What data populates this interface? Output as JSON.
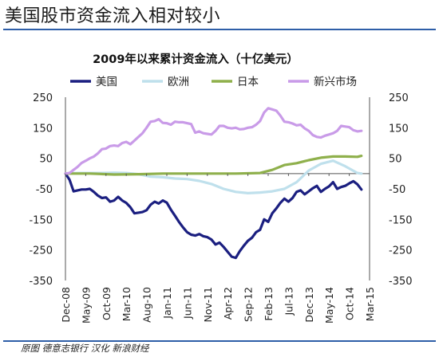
{
  "page_title": "美国股市资金流入相对较小",
  "source_note": "原图 德意志银行 汉化 新浪财经",
  "chart_data": {
    "type": "line",
    "title": "2009年以来累计资金流入（十亿美元）",
    "xlabel": "",
    "ylabel": "",
    "ylim": [
      -350,
      250
    ],
    "yticks": [
      250,
      150,
      50,
      -50,
      -150,
      -250,
      -350
    ],
    "grid": false,
    "legend_position": "top",
    "x_tick_labels": [
      "Dec-08",
      "May-09",
      "Oct-09",
      "Mar-10",
      "Aug-10",
      "Jan-11",
      "Jun-11",
      "Nov-11",
      "Apr-12",
      "Sep-12",
      "Feb-13",
      "Jul-13",
      "Dec-13",
      "May-14",
      "Oct-14",
      "Mar-15"
    ],
    "x_start": "Dec-08",
    "x_end": "Mar-15",
    "series": [
      {
        "name": "美国",
        "color": "#1b1f80",
        "x": [
          "Dec-08",
          "Jan-09",
          "Feb-09",
          "Mar-09",
          "Apr-09",
          "May-09",
          "Jun-09",
          "Jul-09",
          "Aug-09",
          "Sep-09",
          "Oct-09",
          "Nov-09",
          "Dec-09",
          "Jan-10",
          "Feb-10",
          "Mar-10",
          "Apr-10",
          "May-10",
          "Jun-10",
          "Jul-10",
          "Aug-10",
          "Sep-10",
          "Oct-10",
          "Nov-10",
          "Dec-10",
          "Jan-11",
          "Feb-11",
          "Mar-11",
          "Apr-11",
          "May-11",
          "Jun-11",
          "Jul-11",
          "Aug-11",
          "Sep-11",
          "Oct-11",
          "Nov-11",
          "Dec-11",
          "Jan-12",
          "Feb-12",
          "Mar-12",
          "Apr-12",
          "May-12",
          "Jun-12",
          "Jul-12",
          "Aug-12",
          "Sep-12",
          "Oct-12",
          "Nov-12",
          "Dec-12",
          "Jan-13",
          "Feb-13",
          "Mar-13",
          "Apr-13",
          "May-13",
          "Jun-13",
          "Jul-13",
          "Aug-13",
          "Sep-13",
          "Oct-13",
          "Nov-13",
          "Dec-13",
          "Jan-14",
          "Feb-14",
          "Mar-14",
          "Apr-14",
          "May-14",
          "Jun-14",
          "Jul-14",
          "Aug-14",
          "Sep-14",
          "Oct-14",
          "Nov-14",
          "Dec-14",
          "Jan-15"
        ],
        "values": [
          0,
          -20,
          -58,
          -55,
          -52,
          -52,
          -50,
          -60,
          -72,
          -80,
          -78,
          -92,
          -88,
          -76,
          -88,
          -96,
          -110,
          -130,
          -128,
          -126,
          -120,
          -102,
          -92,
          -98,
          -88,
          -95,
          -118,
          -138,
          -158,
          -176,
          -192,
          -200,
          -203,
          -198,
          -205,
          -208,
          -216,
          -232,
          -226,
          -240,
          -256,
          -272,
          -276,
          -254,
          -236,
          -220,
          -210,
          -192,
          -184,
          -150,
          -158,
          -130,
          -114,
          -96,
          -82,
          -92,
          -80,
          -60,
          -55,
          -68,
          -58,
          -48,
          -40,
          -60,
          -50,
          -42,
          -28,
          -50,
          -44,
          -40,
          -32,
          -25,
          -35,
          -52
        ]
      },
      {
        "name": "欧洲",
        "color": "#bfe0ec",
        "x": [
          "Dec-08",
          "Mar-09",
          "Jun-09",
          "Sep-09",
          "Dec-09",
          "Mar-10",
          "Jun-10",
          "Sep-10",
          "Dec-10",
          "Mar-11",
          "Jun-11",
          "Sep-11",
          "Dec-11",
          "Mar-12",
          "Jun-12",
          "Sep-12",
          "Dec-12",
          "Mar-13",
          "Jun-13",
          "Sep-13",
          "Dec-13",
          "Mar-14",
          "Jun-14",
          "Sep-14",
          "Dec-14",
          "Jan-15"
        ],
        "values": [
          0,
          2,
          2,
          2,
          3,
          2,
          -2,
          -10,
          -12,
          -16,
          -18,
          -24,
          -34,
          -50,
          -60,
          -64,
          -62,
          -58,
          -50,
          -28,
          10,
          32,
          42,
          24,
          2,
          0
        ]
      },
      {
        "name": "日本",
        "color": "#8fb04c",
        "x": [
          "Dec-08",
          "Jun-09",
          "Dec-09",
          "Jun-10",
          "Dec-10",
          "Jun-11",
          "Dec-11",
          "Jun-12",
          "Dec-12",
          "Mar-13",
          "Jun-13",
          "Sep-13",
          "Dec-13",
          "Mar-14",
          "Jun-14",
          "Sep-14",
          "Dec-14",
          "Jan-15"
        ],
        "values": [
          0,
          0,
          -3,
          -2,
          0,
          0,
          0,
          0,
          2,
          12,
          28,
          34,
          44,
          52,
          56,
          56,
          55,
          58
        ]
      },
      {
        "name": "新兴市场",
        "color": "#c99be8",
        "x": [
          "Dec-08",
          "Jan-09",
          "Feb-09",
          "Mar-09",
          "Apr-09",
          "May-09",
          "Jun-09",
          "Jul-09",
          "Aug-09",
          "Sep-09",
          "Oct-09",
          "Nov-09",
          "Dec-09",
          "Jan-10",
          "Feb-10",
          "Mar-10",
          "Apr-10",
          "May-10",
          "Jun-10",
          "Jul-10",
          "Aug-10",
          "Sep-10",
          "Oct-10",
          "Nov-10",
          "Dec-10",
          "Jan-11",
          "Feb-11",
          "Mar-11",
          "Apr-11",
          "May-11",
          "Jun-11",
          "Jul-11",
          "Aug-11",
          "Sep-11",
          "Oct-11",
          "Nov-11",
          "Dec-11",
          "Jan-12",
          "Feb-12",
          "Mar-12",
          "Apr-12",
          "May-12",
          "Jun-12",
          "Jul-12",
          "Aug-12",
          "Sep-12",
          "Oct-12",
          "Nov-12",
          "Dec-12",
          "Jan-13",
          "Feb-13",
          "Mar-13",
          "Apr-13",
          "May-13",
          "Jun-13",
          "Jul-13",
          "Aug-13",
          "Sep-13",
          "Oct-13",
          "Nov-13",
          "Dec-13",
          "Jan-14",
          "Feb-14",
          "Mar-14",
          "Apr-14",
          "May-14",
          "Jun-14",
          "Jul-14",
          "Aug-14",
          "Sep-14",
          "Oct-14",
          "Nov-14",
          "Dec-14",
          "Jan-15"
        ],
        "values": [
          0,
          2,
          12,
          22,
          35,
          42,
          50,
          56,
          66,
          80,
          82,
          90,
          92,
          90,
          100,
          104,
          96,
          108,
          120,
          132,
          150,
          170,
          172,
          178,
          166,
          165,
          160,
          170,
          168,
          168,
          165,
          162,
          134,
          138,
          132,
          130,
          128,
          140,
          156,
          156,
          150,
          148,
          150,
          145,
          146,
          150,
          152,
          160,
          172,
          200,
          214,
          210,
          206,
          190,
          170,
          168,
          164,
          158,
          160,
          148,
          140,
          126,
          120,
          118,
          124,
          128,
          132,
          140,
          156,
          154,
          152,
          142,
          138,
          140
        ]
      }
    ]
  }
}
